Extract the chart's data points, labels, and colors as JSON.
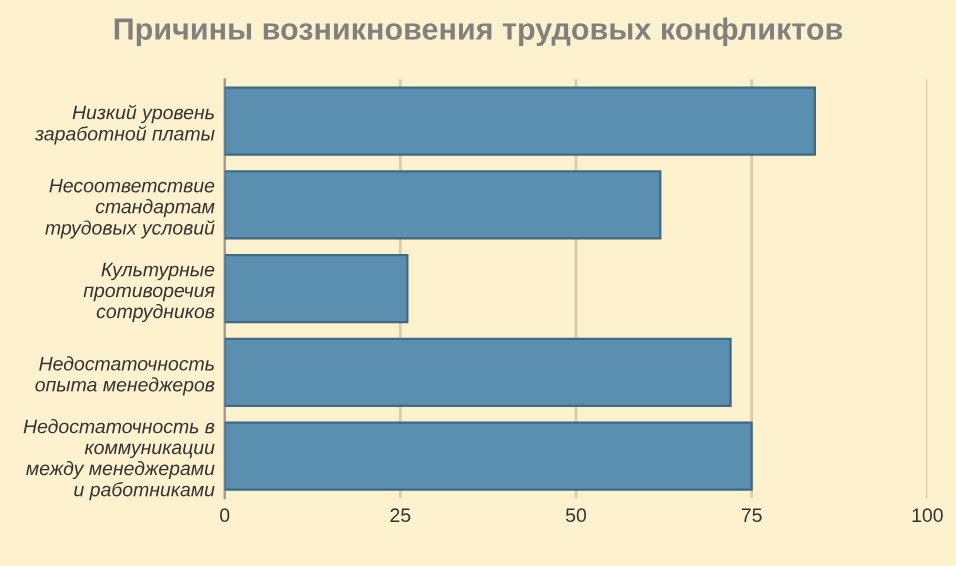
{
  "chart_data": {
    "type": "bar",
    "orientation": "horizontal",
    "title": "Причины возникновения трудовых конфликтов",
    "categories": [
      "Низкий уровень\nзаработной платы",
      "Несоответствие\nстандартам\nтрудовых условий",
      "Культурные\nпротиворечия\nсотрудников",
      "Недостаточность\nопыта менеджеров",
      "Недостаточность в\nкоммуникации\nмежду менеджерами\nи работниками"
    ],
    "values": [
      84,
      62,
      26,
      72,
      75
    ],
    "color": "#5a8fb0",
    "xlim": [
      0,
      100
    ],
    "xticks": [
      0,
      25,
      50,
      75,
      100
    ],
    "grid": "x"
  }
}
